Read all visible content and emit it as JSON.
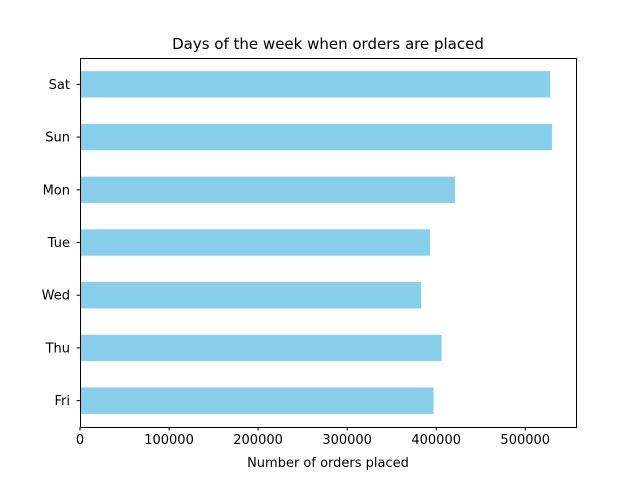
{
  "chart_data": {
    "type": "bar",
    "orientation": "horizontal",
    "title": "Days of the week when orders are placed",
    "xlabel": "Number of orders placed",
    "ylabel": "",
    "categories": [
      "Sat",
      "Sun",
      "Mon",
      "Tue",
      "Wed",
      "Thu",
      "Fri"
    ],
    "values": [
      528000,
      530000,
      421000,
      393000,
      383000,
      406000,
      397000
    ],
    "xlim": [
      0,
      557000
    ],
    "xticks": [
      0,
      100000,
      200000,
      300000,
      400000,
      500000
    ],
    "xtick_labels": [
      "0",
      "100000",
      "200000",
      "300000",
      "400000",
      "500000"
    ],
    "bar_color": "#87CEEB",
    "grid": false,
    "legend": "none"
  }
}
